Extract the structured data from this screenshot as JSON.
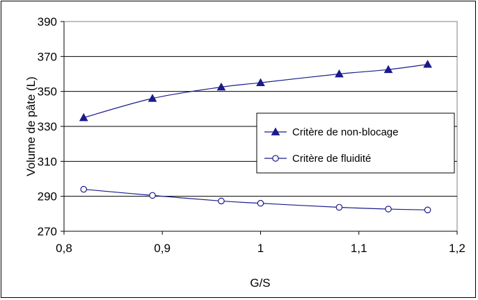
{
  "chart_data": {
    "type": "line",
    "xlabel": "G/S",
    "ylabel": "Volume de pâte (L)",
    "xlim": [
      0.8,
      1.2
    ],
    "ylim": [
      270,
      390
    ],
    "x_ticks": [
      "0,8",
      "0,9",
      "1",
      "1,1",
      "1,2"
    ],
    "y_ticks": [
      "270",
      "290",
      "310",
      "330",
      "350",
      "370",
      "390"
    ],
    "grid": "horizontal",
    "legend_position": "right-middle",
    "series": [
      {
        "name": "Critère de non-blocage",
        "marker": "filled-triangle",
        "color": "#1a1a8c",
        "x": [
          0.82,
          0.89,
          0.96,
          1.0,
          1.08,
          1.13,
          1.17
        ],
        "y": [
          335,
          346,
          352.5,
          355,
          360,
          362.5,
          365.5
        ]
      },
      {
        "name": "Critère de fluidité",
        "marker": "open-circle",
        "color": "#1a1a8c",
        "x": [
          0.82,
          0.89,
          0.96,
          1.0,
          1.08,
          1.13,
          1.17
        ],
        "y": [
          294,
          290.5,
          287.3,
          286,
          283.7,
          282.7,
          282.2
        ]
      }
    ]
  }
}
